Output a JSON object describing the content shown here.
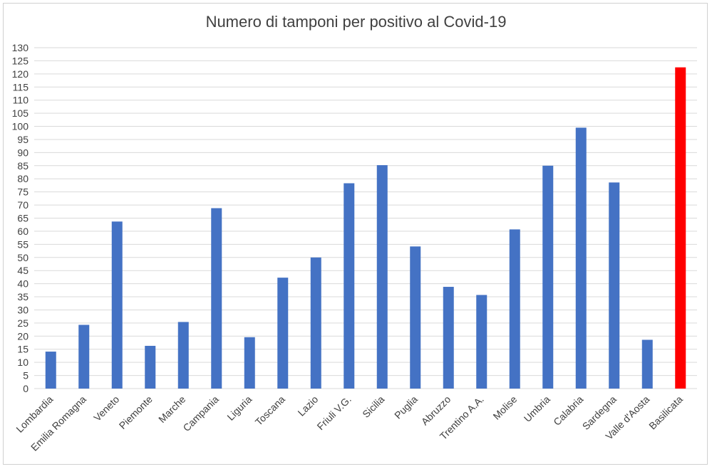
{
  "chart_data": {
    "type": "bar",
    "title": "Numero di tamponi per positivo al Covid-19",
    "xlabel": "",
    "ylabel": "",
    "ylim": [
      0,
      130
    ],
    "yticks": [
      0,
      5,
      10,
      15,
      20,
      25,
      30,
      35,
      40,
      45,
      50,
      55,
      60,
      65,
      70,
      75,
      80,
      85,
      90,
      95,
      100,
      105,
      110,
      115,
      120,
      125,
      130
    ],
    "grid": true,
    "legend": "none",
    "categories": [
      "Lombardia",
      "Emilia Romagna",
      "Veneto",
      "Piemonte",
      "Marche",
      "Campania",
      "Liguria",
      "Toscana",
      "Lazio",
      "Friuli V.G.",
      "Sicilia",
      "Puglia",
      "Abruzzo",
      "Trentino A.A.",
      "Molise",
      "Umbria",
      "Calabria",
      "Sardegna",
      "Valle d'Aosta",
      "Basilicata"
    ],
    "values": [
      14.1,
      24.3,
      63.7,
      16.3,
      25.4,
      68.8,
      19.6,
      42.3,
      50.0,
      78.3,
      85.2,
      54.2,
      38.8,
      35.7,
      60.7,
      85.0,
      99.5,
      78.6,
      18.6,
      122.5
    ],
    "colors": {
      "default": "#4472c4",
      "highlight": "#ff0000",
      "grid": "#d9d9d9",
      "text": "#404040"
    },
    "highlight_category": "Basilicata"
  }
}
